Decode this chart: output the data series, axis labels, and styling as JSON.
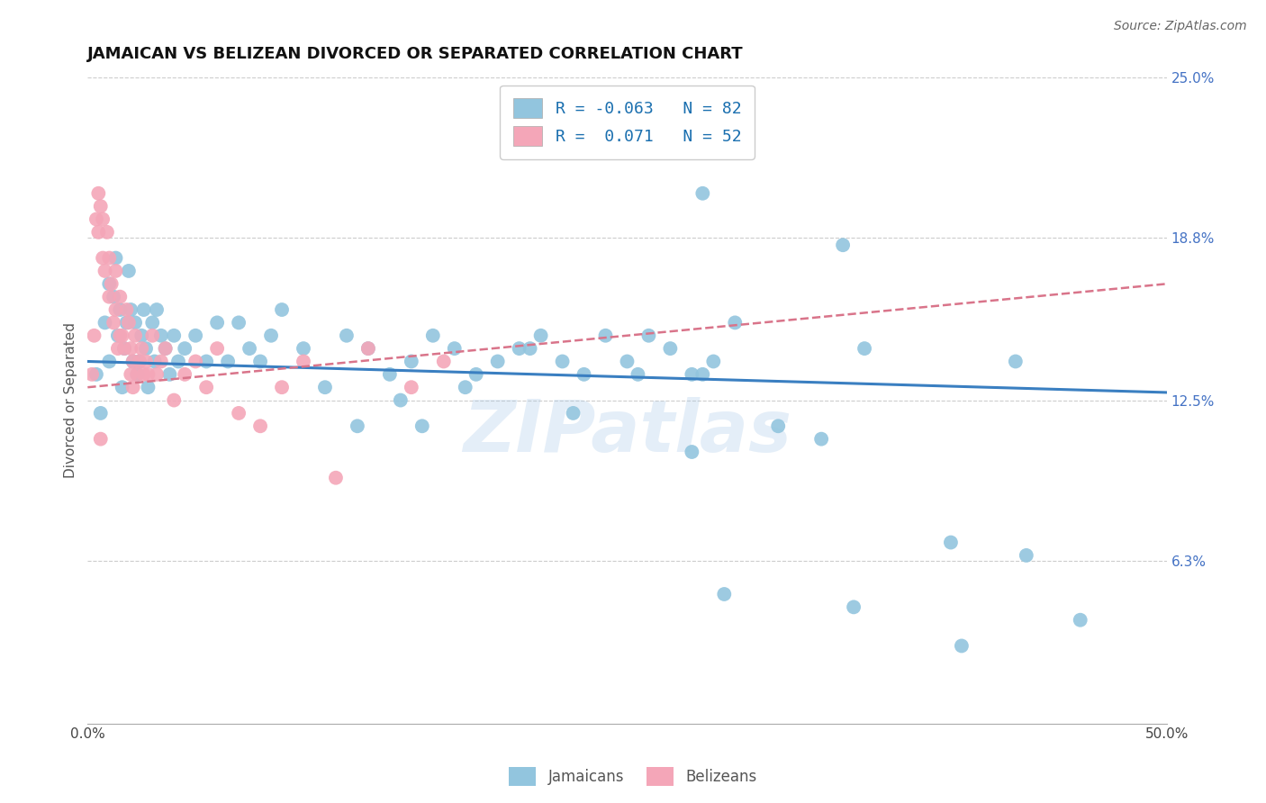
{
  "title": "JAMAICAN VS BELIZEAN DIVORCED OR SEPARATED CORRELATION CHART",
  "source_text": "Source: ZipAtlas.com",
  "ylabel": "Divorced or Separated",
  "xlim": [
    0.0,
    50.0
  ],
  "ylim": [
    0.0,
    25.0
  ],
  "yticks": [
    6.3,
    12.5,
    18.8,
    25.0
  ],
  "ytick_labels": [
    "6.3%",
    "12.5%",
    "18.8%",
    "25.0%"
  ],
  "blue_R": -0.063,
  "blue_N": 82,
  "pink_R": 0.071,
  "pink_N": 52,
  "blue_color": "#92c5de",
  "pink_color": "#f4a6b8",
  "blue_line_color": "#3a7fc1",
  "pink_line_color": "#d9748a",
  "watermark": "ZIPatlas",
  "legend_label_blue": "Jamaicans",
  "legend_label_pink": "Belizeans",
  "blue_trend_x0": 0.0,
  "blue_trend_y0": 14.0,
  "blue_trend_x1": 50.0,
  "blue_trend_y1": 12.8,
  "pink_trend_x0": 0.0,
  "pink_trend_y0": 13.0,
  "pink_trend_x1": 50.0,
  "pink_trend_y1": 17.0,
  "blue_scatter_x": [
    0.4,
    0.6,
    0.8,
    1.0,
    1.0,
    1.2,
    1.3,
    1.4,
    1.5,
    1.6,
    1.7,
    1.8,
    1.9,
    2.0,
    2.1,
    2.2,
    2.3,
    2.4,
    2.5,
    2.6,
    2.7,
    2.8,
    3.0,
    3.1,
    3.2,
    3.4,
    3.6,
    3.8,
    4.0,
    4.2,
    4.5,
    5.0,
    5.5,
    6.0,
    6.5,
    7.0,
    7.5,
    8.0,
    8.5,
    9.0,
    10.0,
    11.0,
    12.0,
    13.0,
    14.0,
    15.0,
    16.0,
    17.0,
    18.0,
    19.0,
    20.0,
    21.0,
    22.0,
    23.0,
    24.0,
    25.0,
    26.0,
    27.0,
    28.0,
    29.0,
    30.0,
    12.5,
    14.5,
    15.5,
    17.5,
    20.5,
    22.5,
    25.5,
    28.5,
    32.0,
    36.0,
    40.0,
    43.0,
    28.0,
    34.0,
    28.5,
    35.0,
    29.5,
    35.5,
    43.5,
    40.5,
    46.0
  ],
  "blue_scatter_y": [
    13.5,
    12.0,
    15.5,
    14.0,
    17.0,
    16.5,
    18.0,
    15.0,
    16.0,
    13.0,
    14.5,
    15.5,
    17.5,
    16.0,
    14.0,
    15.5,
    13.5,
    14.0,
    15.0,
    16.0,
    14.5,
    13.0,
    15.5,
    14.0,
    16.0,
    15.0,
    14.5,
    13.5,
    15.0,
    14.0,
    14.5,
    15.0,
    14.0,
    15.5,
    14.0,
    15.5,
    14.5,
    14.0,
    15.0,
    16.0,
    14.5,
    13.0,
    15.0,
    14.5,
    13.5,
    14.0,
    15.0,
    14.5,
    13.5,
    14.0,
    14.5,
    15.0,
    14.0,
    13.5,
    15.0,
    14.0,
    15.0,
    14.5,
    13.5,
    14.0,
    15.5,
    11.5,
    12.5,
    11.5,
    13.0,
    14.5,
    12.0,
    13.5,
    13.5,
    11.5,
    14.5,
    7.0,
    14.0,
    10.5,
    11.0,
    20.5,
    18.5,
    5.0,
    4.5,
    6.5,
    3.0,
    4.0
  ],
  "pink_scatter_x": [
    0.2,
    0.3,
    0.4,
    0.5,
    0.5,
    0.6,
    0.7,
    0.7,
    0.8,
    0.9,
    1.0,
    1.0,
    1.1,
    1.2,
    1.3,
    1.3,
    1.4,
    1.5,
    1.5,
    1.6,
    1.7,
    1.8,
    1.9,
    2.0,
    2.0,
    2.1,
    2.2,
    2.3,
    2.4,
    2.5,
    2.6,
    2.7,
    2.8,
    3.0,
    3.2,
    3.4,
    3.6,
    4.0,
    4.5,
    5.0,
    5.5,
    6.0,
    7.0,
    8.0,
    9.0,
    10.0,
    11.5,
    13.0,
    15.0,
    16.5,
    0.6,
    2.1
  ],
  "pink_scatter_y": [
    13.5,
    15.0,
    19.5,
    20.5,
    19.0,
    20.0,
    18.0,
    19.5,
    17.5,
    19.0,
    16.5,
    18.0,
    17.0,
    15.5,
    16.0,
    17.5,
    14.5,
    15.0,
    16.5,
    15.0,
    14.5,
    16.0,
    15.5,
    14.5,
    13.5,
    14.0,
    15.0,
    13.5,
    14.0,
    14.5,
    13.5,
    14.0,
    13.5,
    15.0,
    13.5,
    14.0,
    14.5,
    12.5,
    13.5,
    14.0,
    13.0,
    14.5,
    12.0,
    11.5,
    13.0,
    14.0,
    9.5,
    14.5,
    13.0,
    14.0,
    11.0,
    13.0
  ]
}
